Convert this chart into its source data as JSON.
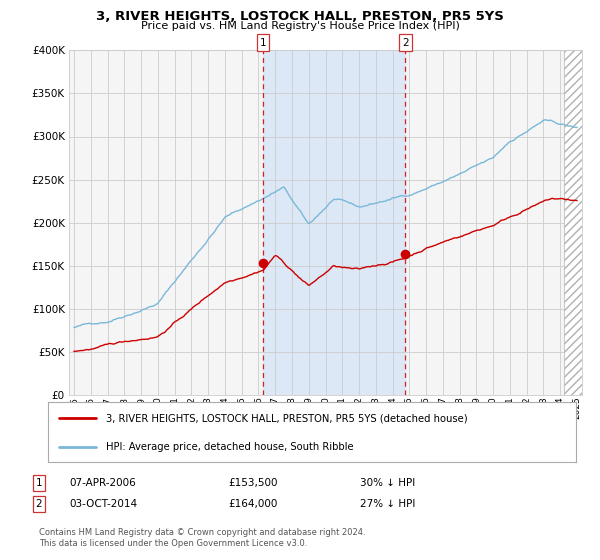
{
  "title": "3, RIVER HEIGHTS, LOSTOCK HALL, PRESTON, PR5 5YS",
  "subtitle": "Price paid vs. HM Land Registry's House Price Index (HPI)",
  "legend_line1": "3, RIVER HEIGHTS, LOSTOCK HALL, PRESTON, PR5 5YS (detached house)",
  "legend_line2": "HPI: Average price, detached house, South Ribble",
  "transaction1_date": "07-APR-2006",
  "transaction1_price": "£153,500",
  "transaction1_pct": "30% ↓ HPI",
  "transaction2_date": "03-OCT-2014",
  "transaction2_price": "£164,000",
  "transaction2_pct": "27% ↓ HPI",
  "footer": "Contains HM Land Registry data © Crown copyright and database right 2024.\nThis data is licensed under the Open Government Licence v3.0.",
  "hpi_color": "#7ab8d9",
  "price_color": "#cc0000",
  "background_color": "#ffffff",
  "plot_bg_color": "#f5f5f5",
  "shade_color": "#dce8f5",
  "ylim": [
    0,
    400000
  ],
  "yticks": [
    0,
    50000,
    100000,
    150000,
    200000,
    250000,
    300000,
    350000,
    400000
  ],
  "x_start_year": 1995,
  "x_end_year": 2025,
  "transaction1_year": 2006.27,
  "transaction2_year": 2014.75
}
